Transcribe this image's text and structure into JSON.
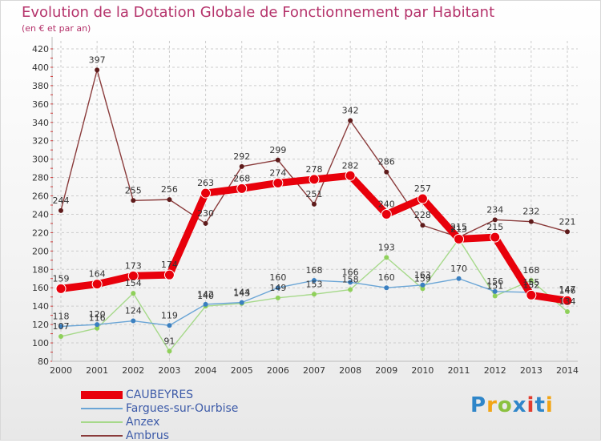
{
  "title": "Evolution de la Dotation Globale de Fonctionnement par Habitant",
  "subtitle": "(en € et par an)",
  "logo": {
    "text": "Proxiti",
    "colors": [
      "#2f86c9",
      "#f2a516",
      "#8bc13f",
      "#2f86c9",
      "#e23c2f",
      "#2f86c9",
      "#f2a516"
    ]
  },
  "colors": {
    "title": "#b5336b",
    "grid": "#cccccc",
    "axis_tick": "#d23c3c"
  },
  "chart_data": {
    "type": "line",
    "title": "Evolution de la Dotation Globale de Fonctionnement par Habitant",
    "ylabel": "(en € et par an)",
    "x": [
      2000,
      2001,
      2002,
      2003,
      2004,
      2005,
      2006,
      2007,
      2008,
      2009,
      2010,
      2011,
      2012,
      2013,
      2014
    ],
    "xtick_labels": [
      "2000",
      "2001",
      "2002",
      "2003",
      "2004",
      "2005",
      "2006",
      "2007",
      "2008",
      "2009",
      "2010",
      "2011",
      "2012",
      "2013",
      "2014"
    ],
    "ylim": [
      80,
      420
    ],
    "yticks": [
      80,
      100,
      120,
      140,
      160,
      180,
      200,
      220,
      240,
      260,
      280,
      300,
      320,
      340,
      360,
      380,
      400,
      420
    ],
    "grid": true,
    "legend_position": "bottom-left",
    "series": [
      {
        "name": "CAUBEYRES",
        "color": "#e8000b",
        "marker": "#e8000b",
        "width": "bold",
        "values": [
          159,
          164,
          173,
          174,
          263,
          268,
          274,
          278,
          282,
          240,
          257,
          213,
          215,
          152,
          146
        ],
        "labels": [
          "159",
          "164",
          "173",
          "174",
          "263",
          "268",
          "274",
          "278",
          "282",
          "240",
          "257",
          "213",
          "215",
          "152",
          "146"
        ]
      },
      {
        "name": "Fargues-sur-Ourbise",
        "color": "#6aa5d6",
        "marker": "#3a7fc0",
        "width": "thin",
        "values": [
          118,
          120,
          124,
          119,
          142,
          144,
          160,
          168,
          166,
          160,
          163,
          170,
          156,
          155,
          147
        ],
        "labels": [
          "118",
          "120",
          "124",
          "119",
          "142",
          "144",
          "160",
          "168",
          "166",
          "160",
          "163",
          "170",
          "156",
          "155",
          "147"
        ]
      },
      {
        "name": "Anzex",
        "color": "#a6d98a",
        "marker": "#8fd05a",
        "width": "thin",
        "values": [
          107,
          116,
          154,
          91,
          140,
          143,
          149,
          153,
          158,
          193,
          159,
          213,
          151,
          168,
          134
        ],
        "labels": [
          "107",
          "116",
          "154",
          "91",
          "140",
          "143",
          "149",
          "153",
          "158",
          "193",
          "159",
          "213",
          "151",
          "168",
          "134"
        ]
      },
      {
        "name": "Ambrus",
        "color": "#8a3b3b",
        "marker": "#5e1b1b",
        "width": "thin",
        "values": [
          244,
          397,
          255,
          256,
          230,
          292,
          299,
          251,
          342,
          286,
          228,
          215,
          234,
          232,
          221
        ],
        "labels": [
          "244",
          "397",
          "255",
          "256",
          "230",
          "292",
          "299",
          "251",
          "342",
          "286",
          "228",
          "215",
          "234",
          "232",
          "221"
        ]
      }
    ]
  }
}
